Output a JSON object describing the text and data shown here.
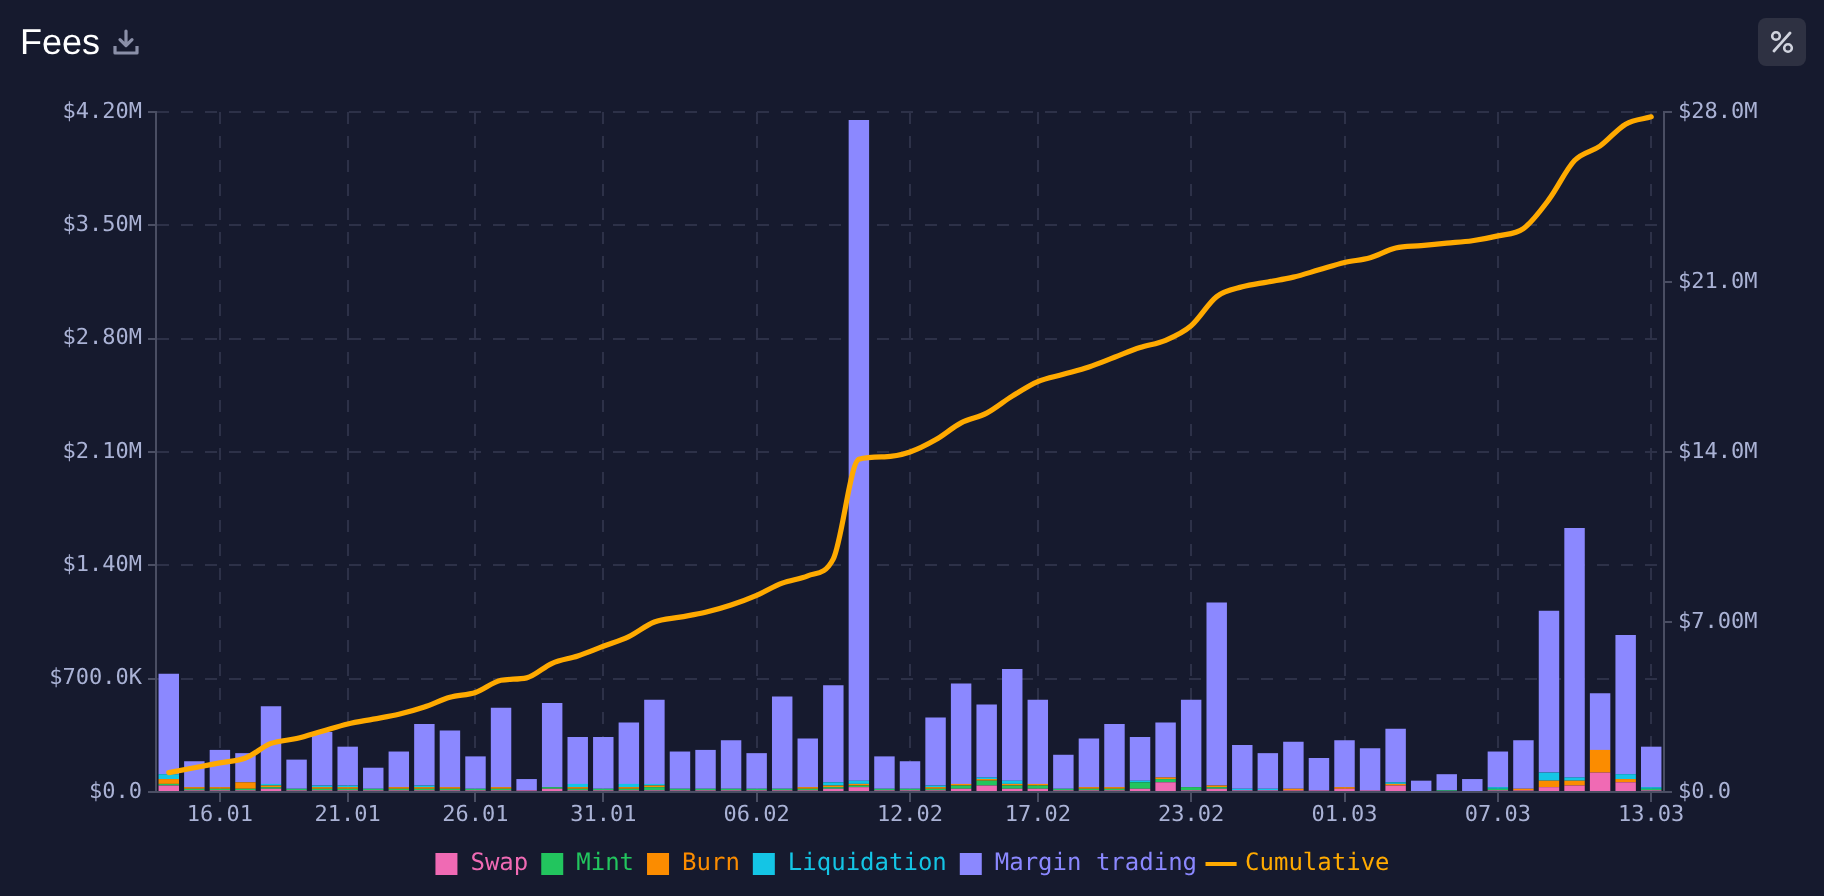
{
  "chart_data": {
    "type": "bar",
    "title": "Fees",
    "stacked": true,
    "grid": true,
    "legend": "bottom",
    "categories": [
      null,
      null,
      "16.01",
      null,
      null,
      null,
      null,
      "21.01",
      null,
      null,
      null,
      null,
      "26.01",
      null,
      null,
      null,
      null,
      "31.01",
      null,
      null,
      null,
      null,
      null,
      "06.02",
      null,
      null,
      null,
      null,
      null,
      "12.02",
      null,
      null,
      null,
      null,
      "17.02",
      null,
      null,
      null,
      null,
      null,
      "23.02",
      null,
      null,
      null,
      null,
      null,
      "01.03",
      null,
      null,
      null,
      null,
      null,
      "07.03",
      null,
      null,
      null,
      null,
      null,
      "13.03"
    ],
    "ylim": [
      0,
      4200000
    ],
    "yticks": [
      {
        "value": 0,
        "label": "$0.0"
      },
      {
        "value": 700000,
        "label": "$700.0K"
      },
      {
        "value": 1400000,
        "label": "$1.40M"
      },
      {
        "value": 2100000,
        "label": "$2.10M"
      },
      {
        "value": 2800000,
        "label": "$2.80M"
      },
      {
        "value": 3500000,
        "label": "$3.50M"
      },
      {
        "value": 4200000,
        "label": "$4.20M"
      }
    ],
    "y2lim": [
      0,
      28000000
    ],
    "y2ticks": [
      {
        "value": 0,
        "label": "$0.0"
      },
      {
        "value": 7000000,
        "label": "$7.00M"
      },
      {
        "value": 14000000,
        "label": "$14.0M"
      },
      {
        "value": 21000000,
        "label": "$21.0M"
      },
      {
        "value": 28000000,
        "label": "$28.0M"
      }
    ],
    "series": [
      {
        "name": "Swap",
        "color": "#f06ab4",
        "values": [
          40000,
          10000,
          10000,
          10000,
          20000,
          10000,
          10000,
          10000,
          10000,
          10000,
          10000,
          10000,
          10000,
          10000,
          10000,
          20000,
          10000,
          10000,
          10000,
          10000,
          10000,
          10000,
          10000,
          10000,
          10000,
          10000,
          20000,
          30000,
          10000,
          10000,
          10000,
          20000,
          40000,
          20000,
          20000,
          10000,
          10000,
          10000,
          20000,
          60000,
          10000,
          20000,
          10000,
          10000,
          10000,
          10000,
          20000,
          10000,
          40000,
          0,
          0,
          0,
          10000,
          10000,
          30000,
          40000,
          120000,
          60000,
          10000
        ]
      },
      {
        "name": "Mint",
        "color": "#22c55e",
        "values": [
          10000,
          10000,
          10000,
          10000,
          10000,
          10000,
          10000,
          10000,
          10000,
          10000,
          10000,
          10000,
          10000,
          10000,
          0,
          10000,
          10000,
          10000,
          10000,
          20000,
          10000,
          10000,
          10000,
          10000,
          10000,
          10000,
          10000,
          10000,
          10000,
          10000,
          10000,
          20000,
          30000,
          20000,
          20000,
          10000,
          10000,
          10000,
          40000,
          20000,
          20000,
          10000,
          0,
          0,
          0,
          0,
          0,
          0,
          0,
          0,
          10000,
          0,
          10000,
          0,
          0,
          0,
          0,
          0,
          10000
        ]
      },
      {
        "name": "Burn",
        "color": "#fb8c00",
        "values": [
          30000,
          10000,
          10000,
          40000,
          10000,
          0,
          10000,
          10000,
          0,
          10000,
          10000,
          10000,
          0,
          10000,
          0,
          0,
          10000,
          0,
          10000,
          10000,
          0,
          0,
          0,
          0,
          0,
          10000,
          10000,
          10000,
          0,
          0,
          10000,
          10000,
          10000,
          10000,
          10000,
          0,
          10000,
          10000,
          0,
          10000,
          0,
          10000,
          0,
          0,
          10000,
          0,
          10000,
          0,
          10000,
          0,
          0,
          0,
          0,
          10000,
          40000,
          30000,
          140000,
          20000,
          0
        ]
      },
      {
        "name": "Liquidation",
        "color": "#14c5e5",
        "values": [
          30000,
          0,
          0,
          0,
          10000,
          0,
          10000,
          10000,
          0,
          0,
          10000,
          0,
          0,
          0,
          0,
          0,
          20000,
          0,
          20000,
          10000,
          0,
          0,
          0,
          0,
          0,
          0,
          20000,
          20000,
          0,
          0,
          10000,
          0,
          10000,
          20000,
          0,
          0,
          0,
          0,
          10000,
          0,
          0,
          0,
          10000,
          10000,
          0,
          0,
          0,
          0,
          10000,
          0,
          0,
          0,
          10000,
          0,
          50000,
          20000,
          0,
          30000,
          10000
        ]
      },
      {
        "name": "Margin trading",
        "color": "#8b88ff",
        "values": [
          620000,
          160000,
          230000,
          180000,
          480000,
          180000,
          330000,
          240000,
          130000,
          220000,
          380000,
          350000,
          200000,
          490000,
          70000,
          520000,
          290000,
          320000,
          380000,
          520000,
          230000,
          240000,
          300000,
          220000,
          570000,
          300000,
          600000,
          4080000,
          200000,
          170000,
          420000,
          620000,
          450000,
          690000,
          520000,
          210000,
          300000,
          390000,
          270000,
          340000,
          540000,
          1130000,
          270000,
          220000,
          290000,
          200000,
          290000,
          260000,
          330000,
          70000,
          100000,
          80000,
          220000,
          300000,
          1000000,
          1540000,
          350000,
          860000,
          250000
        ]
      },
      {
        "name": "Cumulative",
        "type": "line",
        "axis": "y2",
        "color": "#ffaa00",
        "values": [
          800000,
          1000000,
          1200000,
          1400000,
          2000000,
          2200000,
          2500000,
          2800000,
          3000000,
          3200000,
          3500000,
          3900000,
          4100000,
          4600000,
          4700000,
          5300000,
          5600000,
          6000000,
          6400000,
          7000000,
          7200000,
          7400000,
          7700000,
          8100000,
          8600000,
          8900000,
          9600000,
          13700000,
          13800000,
          14000000,
          14500000,
          15200000,
          15600000,
          16300000,
          16900000,
          17200000,
          17500000,
          17900000,
          18300000,
          18600000,
          19200000,
          20400000,
          20800000,
          21000000,
          21200000,
          21500000,
          21800000,
          22000000,
          22400000,
          22500000,
          22600000,
          22700000,
          22900000,
          23200000,
          24400000,
          26000000,
          26600000,
          27500000,
          27800000
        ]
      }
    ]
  }
}
